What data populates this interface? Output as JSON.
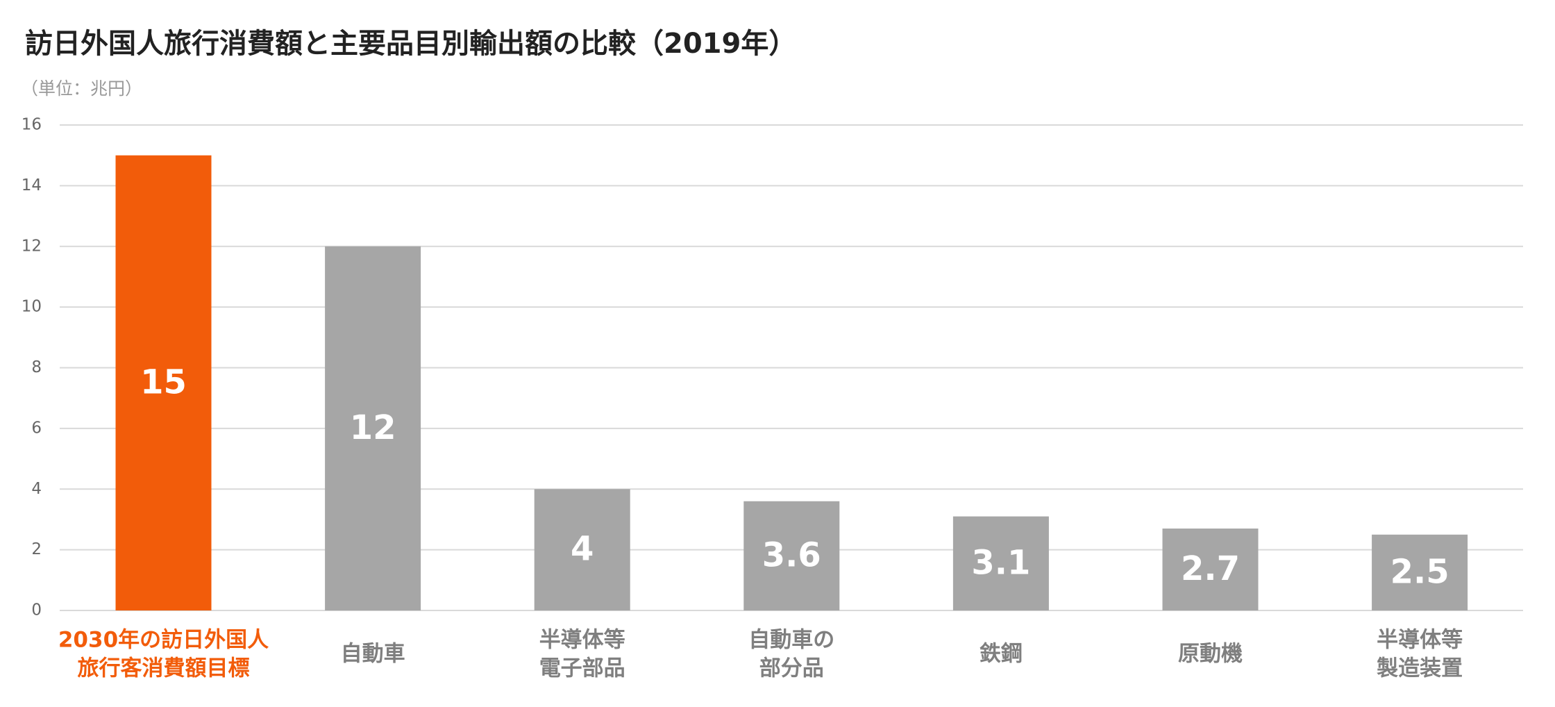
{
  "chart_data": {
    "type": "bar",
    "title": "訪日外国人旅行消費額と主要品目別輸出額の比較（2019年）",
    "subtitle": "（単位：兆円）",
    "categories": [
      [
        "2030年の訪日外国人",
        "旅行客消費額目標"
      ],
      [
        "自動車"
      ],
      [
        "半導体等",
        "電子部品"
      ],
      [
        "自動車の",
        "部分品"
      ],
      [
        "鉄鋼"
      ],
      [
        "原動機"
      ],
      [
        "半導体等",
        "製造装置"
      ]
    ],
    "values": [
      15,
      12,
      4,
      3.6,
      3.1,
      2.7,
      2.5
    ],
    "colors": [
      "#f25c0a",
      "#a6a6a6",
      "#a6a6a6",
      "#a6a6a6",
      "#a6a6a6",
      "#a6a6a6",
      "#a6a6a6"
    ],
    "label_colors": [
      "#f25c0a",
      "#7f7f7f",
      "#7f7f7f",
      "#7f7f7f",
      "#7f7f7f",
      "#7f7f7f",
      "#7f7f7f"
    ],
    "ylim": [
      0,
      16
    ],
    "yticks": [
      0,
      2,
      4,
      6,
      8,
      10,
      12,
      14,
      16
    ],
    "grid": true
  }
}
